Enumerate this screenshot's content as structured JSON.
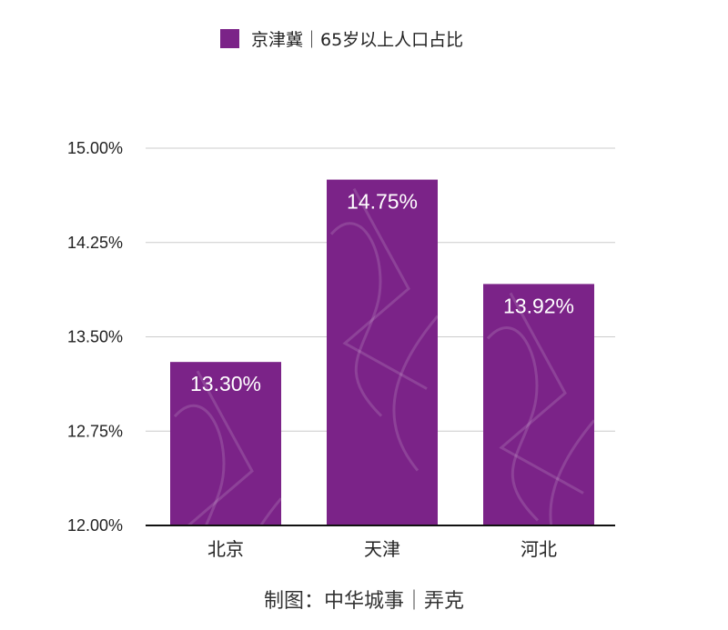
{
  "chart_data": {
    "type": "bar",
    "categories": [
      "北京",
      "天津",
      "河北"
    ],
    "series": [
      {
        "name": "京津冀｜65岁以上人口占比",
        "values": [
          13.3,
          14.75,
          13.92
        ],
        "value_labels": [
          "13.30%",
          "14.75%",
          "13.92%"
        ]
      }
    ],
    "ylim": [
      12.0,
      15.0
    ],
    "yticks": [
      12.0,
      12.75,
      13.5,
      14.25,
      15.0
    ],
    "ytick_labels": [
      "12.00%",
      "12.75%",
      "13.50%",
      "14.25%",
      "15.00%"
    ],
    "grid": true,
    "legend_position": "top-center",
    "credit": "制图：中华城事｜弄克"
  },
  "colors": {
    "bar": "#7B2388",
    "grid": "#cccccc",
    "axis": "#111111",
    "text": "#222222"
  }
}
